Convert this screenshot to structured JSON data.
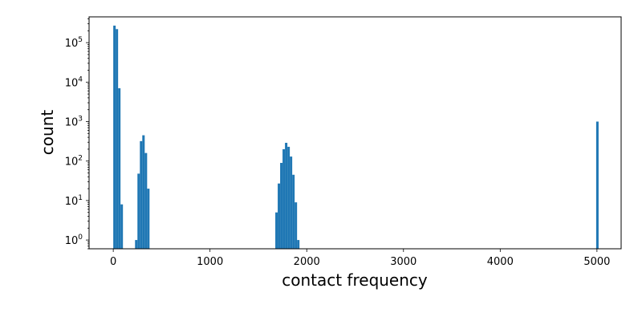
{
  "chart_data": {
    "type": "bar",
    "title": "",
    "xlabel": "contact frequency",
    "ylabel": "count",
    "xlim": [
      -250,
      5250
    ],
    "ylim": [
      0.6,
      450000
    ],
    "yscale": "log",
    "grid": false,
    "legend": "none",
    "bar_color": "#1f77b4",
    "x_ticks": [
      {
        "value": 0,
        "label": "0"
      },
      {
        "value": 1000,
        "label": "1000"
      },
      {
        "value": 2000,
        "label": "2000"
      },
      {
        "value": 3000,
        "label": "3000"
      },
      {
        "value": 4000,
        "label": "4000"
      },
      {
        "value": 5000,
        "label": "5000"
      }
    ],
    "y_ticks": [
      {
        "value": 1,
        "base": "10",
        "exp": "0"
      },
      {
        "value": 10,
        "base": "10",
        "exp": "1"
      },
      {
        "value": 100,
        "base": "10",
        "exp": "2"
      },
      {
        "value": 1000,
        "base": "10",
        "exp": "3"
      },
      {
        "value": 10000,
        "base": "10",
        "exp": "4"
      },
      {
        "value": 100000,
        "base": "10",
        "exp": "5"
      }
    ],
    "bin_width": 25,
    "bins": [
      {
        "x": 0,
        "count": 270000
      },
      {
        "x": 25,
        "count": 220000
      },
      {
        "x": 50,
        "count": 7000
      },
      {
        "x": 75,
        "count": 8
      },
      {
        "x": 225,
        "count": 1
      },
      {
        "x": 250,
        "count": 48
      },
      {
        "x": 275,
        "count": 320
      },
      {
        "x": 300,
        "count": 450
      },
      {
        "x": 325,
        "count": 160
      },
      {
        "x": 350,
        "count": 20
      },
      {
        "x": 1675,
        "count": 5
      },
      {
        "x": 1700,
        "count": 27
      },
      {
        "x": 1725,
        "count": 90
      },
      {
        "x": 1750,
        "count": 200
      },
      {
        "x": 1775,
        "count": 290
      },
      {
        "x": 1800,
        "count": 230
      },
      {
        "x": 1825,
        "count": 130
      },
      {
        "x": 1850,
        "count": 45
      },
      {
        "x": 1875,
        "count": 9
      },
      {
        "x": 1900,
        "count": 1
      },
      {
        "x": 4992,
        "count": 1000
      }
    ]
  }
}
